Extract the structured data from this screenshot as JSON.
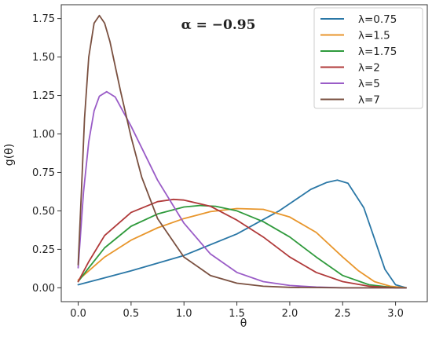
{
  "chart_data": {
    "type": "line",
    "title": "",
    "annotation": "α = −0.95",
    "xlabel": "θ",
    "ylabel": "g(θ)",
    "xlim": [
      -0.16,
      3.3
    ],
    "ylim": [
      -0.09,
      1.84
    ],
    "xticks": [
      "0.0",
      "0.5",
      "1.0",
      "1.5",
      "2.0",
      "2.5",
      "3.0"
    ],
    "xtick_values": [
      0,
      0.5,
      1.0,
      1.5,
      2.0,
      2.5,
      3.0
    ],
    "yticks": [
      "0.00",
      "0.25",
      "0.50",
      "0.75",
      "1.00",
      "1.25",
      "1.50",
      "1.75"
    ],
    "ytick_values": [
      0,
      0.25,
      0.5,
      0.75,
      1.0,
      1.25,
      1.5,
      1.75
    ],
    "grid": false,
    "legend_position": "top-right",
    "series": [
      {
        "name": "λ=0.75",
        "color": "#2a77a6",
        "x": [
          0,
          0.5,
          1.0,
          1.5,
          1.9,
          2.2,
          2.35,
          2.45,
          2.55,
          2.7,
          2.8,
          2.9,
          3.0,
          3.1
        ],
        "y": [
          0.02,
          0.11,
          0.21,
          0.35,
          0.5,
          0.64,
          0.685,
          0.7,
          0.68,
          0.52,
          0.32,
          0.12,
          0.02,
          0.0
        ]
      },
      {
        "name": "λ=1.5",
        "color": "#e8962c",
        "x": [
          0,
          0.1,
          0.25,
          0.5,
          0.75,
          1.0,
          1.25,
          1.5,
          1.75,
          2.0,
          2.25,
          2.5,
          2.65,
          2.8,
          2.95,
          3.1
        ],
        "y": [
          0.05,
          0.11,
          0.2,
          0.31,
          0.39,
          0.45,
          0.495,
          0.515,
          0.51,
          0.46,
          0.36,
          0.2,
          0.11,
          0.04,
          0.01,
          0.0
        ]
      },
      {
        "name": "λ=1.75",
        "color": "#2f9a3c",
        "x": [
          0,
          0.1,
          0.25,
          0.5,
          0.75,
          1.0,
          1.15,
          1.3,
          1.5,
          1.75,
          2.0,
          2.25,
          2.5,
          2.75,
          3.0,
          3.1
        ],
        "y": [
          0.04,
          0.13,
          0.26,
          0.4,
          0.48,
          0.525,
          0.535,
          0.53,
          0.5,
          0.43,
          0.33,
          0.2,
          0.08,
          0.02,
          0.0,
          0.0
        ]
      },
      {
        "name": "λ=2",
        "color": "#b03a3a",
        "x": [
          0,
          0.1,
          0.25,
          0.5,
          0.75,
          0.9,
          1.0,
          1.25,
          1.5,
          1.75,
          2.0,
          2.25,
          2.5,
          2.75,
          3.0,
          3.1
        ],
        "y": [
          0.04,
          0.17,
          0.34,
          0.49,
          0.56,
          0.575,
          0.57,
          0.53,
          0.44,
          0.33,
          0.2,
          0.1,
          0.04,
          0.01,
          0.0,
          0.0
        ]
      },
      {
        "name": "λ=5",
        "color": "#9a5cc7",
        "x": [
          0,
          0.05,
          0.1,
          0.15,
          0.2,
          0.27,
          0.35,
          0.5,
          0.75,
          1.0,
          1.25,
          1.5,
          1.75,
          2.0,
          2.25,
          2.5,
          3.1
        ],
        "y": [
          0.13,
          0.62,
          0.95,
          1.15,
          1.245,
          1.275,
          1.24,
          1.05,
          0.7,
          0.42,
          0.22,
          0.1,
          0.04,
          0.015,
          0.005,
          0.0,
          0.0
        ]
      },
      {
        "name": "λ=7",
        "color": "#7a5040",
        "x": [
          0,
          0.03,
          0.06,
          0.1,
          0.15,
          0.2,
          0.25,
          0.3,
          0.4,
          0.5,
          0.6,
          0.75,
          1.0,
          1.25,
          1.5,
          1.75,
          2.0,
          2.5,
          3.1
        ],
        "y": [
          0.15,
          0.62,
          1.1,
          1.5,
          1.72,
          1.77,
          1.72,
          1.6,
          1.28,
          0.98,
          0.72,
          0.45,
          0.2,
          0.08,
          0.03,
          0.01,
          0.003,
          0.0,
          0.0
        ]
      }
    ]
  }
}
